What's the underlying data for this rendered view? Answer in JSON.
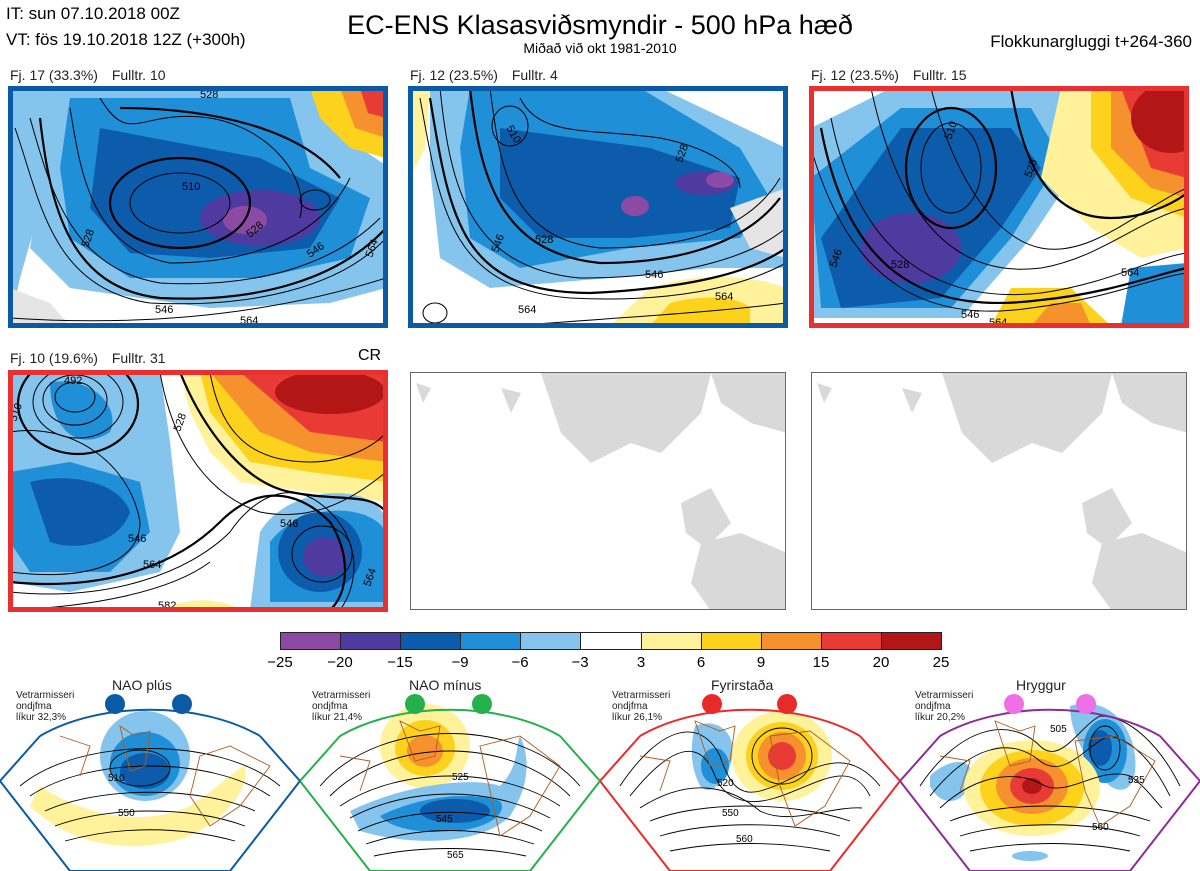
{
  "header": {
    "it_line": "IT: sun 07.10.2018 00Z",
    "vt_line": "VT: fös 19.10.2018 12Z  (+300h)",
    "title": "EC-ENS Klasasviðsmyndir - 500 hPa hæð",
    "subtitle": "Miðað við okt 1981-2010",
    "window": "Flokkunargluggi t+264-360"
  },
  "panels": [
    {
      "freq": "Fj. 17 (33.3%)",
      "rep": "Fulltr. 10",
      "frame_color": "#0a5aa6",
      "contours": [
        "510",
        "528",
        "546",
        "546",
        "564",
        "528",
        "564",
        "528"
      ]
    },
    {
      "freq": "Fj. 12 (23.5%)",
      "rep": "Fulltr. 4",
      "frame_color": "#0a5aa6",
      "contours": [
        "510",
        "528",
        "528",
        "546",
        "546",
        "564",
        "564"
      ]
    },
    {
      "freq": "Fj. 12 (23.5%)",
      "rep": "Fulltr. 15",
      "frame_color": "#e83030",
      "contours": [
        "510",
        "528",
        "528",
        "546",
        "546",
        "564",
        "564"
      ]
    },
    {
      "freq": "Fj. 10 (19.6%)",
      "rep": "Fulltr. 31",
      "frame_color": "#e83030",
      "marker": "CR",
      "contours": [
        "492",
        "510",
        "528",
        "546",
        "546",
        "564",
        "564",
        "582"
      ]
    }
  ],
  "colorbar": {
    "colors": [
      "#8b4aa4",
      "#4f3aa0",
      "#0d5cab",
      "#1f8fd8",
      "#85c4ec",
      "#ffffff",
      "#fff29a",
      "#fdd21d",
      "#f5922e",
      "#e83b36",
      "#b21616"
    ],
    "ticks": [
      "−25",
      "−20",
      "−15",
      "−9",
      "−6",
      "−3",
      "3",
      "6",
      "9",
      "15",
      "20",
      "25"
    ]
  },
  "regimes": [
    {
      "name": "NAO plús",
      "note": [
        "Vetrarmisseri",
        "ondjfma",
        "líkur 32,3%"
      ],
      "color": "#0a5aa6",
      "contours": [
        "510",
        "550"
      ]
    },
    {
      "name": "NAO mínus",
      "note": [
        "Vetrarmisseri",
        "ondjfma",
        "líkur 21,4%"
      ],
      "color": "#24b04a",
      "contours": [
        "525",
        "545",
        "565"
      ]
    },
    {
      "name": "Fyrirstaða",
      "note": [
        "Vetrarmisseri",
        "ondjfma",
        "líkur 26,1%"
      ],
      "color": "#e82a2a",
      "contours": [
        "520",
        "550",
        "560"
      ]
    },
    {
      "name": "Hryggur",
      "note": [
        "Vetrarmisseri",
        "ondjfma",
        "líkur 20,2%"
      ],
      "color": "#8e2a9a",
      "contours": [
        "505",
        "535",
        "560"
      ]
    }
  ]
}
